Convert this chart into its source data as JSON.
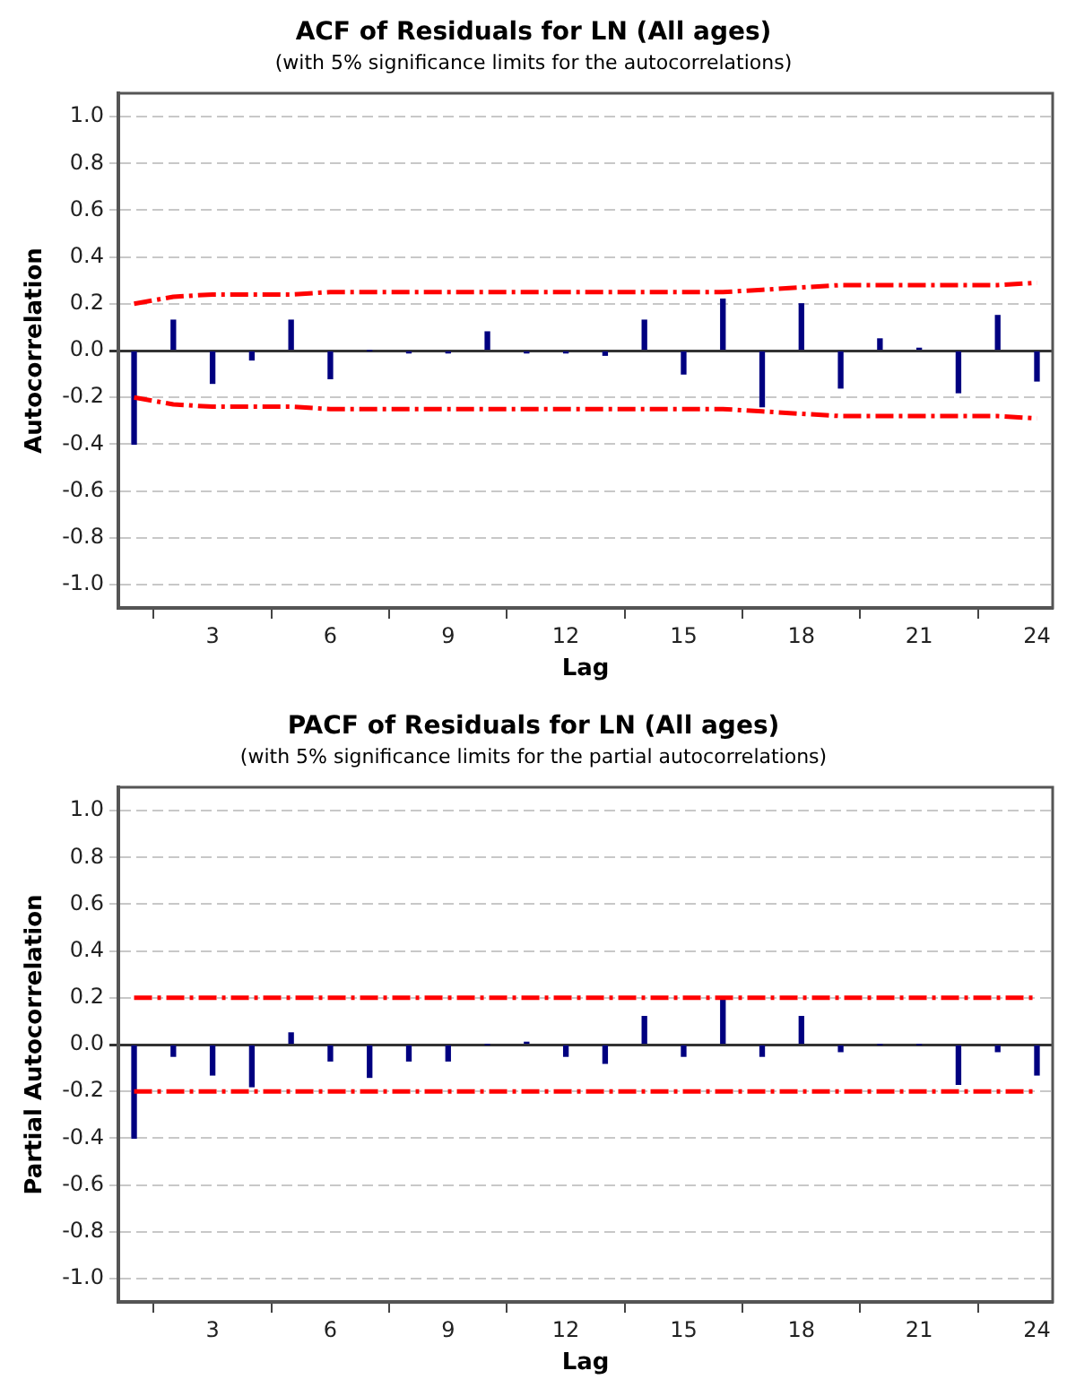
{
  "chart_data": [
    {
      "type": "bar",
      "title": "ACF of Residuals for LN (All ages)",
      "subtitle": "(with 5% significance limits for the autocorrelations)",
      "xlabel": "Lag",
      "ylabel": "Autocorrelation",
      "x": [
        1,
        2,
        3,
        4,
        5,
        6,
        7,
        8,
        9,
        10,
        11,
        12,
        13,
        14,
        15,
        16,
        17,
        18,
        19,
        20,
        21,
        22,
        23,
        24
      ],
      "series": [
        {
          "color": "#000080",
          "values": [
            -0.4,
            0.13,
            -0.14,
            -0.04,
            0.13,
            -0.12,
            0.0,
            -0.01,
            -0.01,
            0.08,
            -0.01,
            -0.01,
            -0.02,
            0.13,
            -0.1,
            0.22,
            -0.24,
            0.2,
            -0.16,
            0.05,
            0.01,
            -0.18,
            0.15,
            -0.13
          ]
        },
        {
          "type": "line",
          "color": "#ff0000",
          "line_style": "dashed",
          "marker": "none",
          "values": [
            0.2,
            0.23,
            0.24,
            0.24,
            0.24,
            0.25,
            0.25,
            0.25,
            0.25,
            0.25,
            0.25,
            0.25,
            0.25,
            0.25,
            0.25,
            0.25,
            0.26,
            0.27,
            0.28,
            0.28,
            0.28,
            0.28,
            0.28,
            0.29
          ]
        },
        {
          "type": "line",
          "color": "#ff0000",
          "line_style": "dashed",
          "marker": "none",
          "values": [
            -0.2,
            -0.23,
            -0.24,
            -0.24,
            -0.24,
            -0.25,
            -0.25,
            -0.25,
            -0.25,
            -0.25,
            -0.25,
            -0.25,
            -0.25,
            -0.25,
            -0.25,
            -0.25,
            -0.26,
            -0.27,
            -0.28,
            -0.28,
            -0.28,
            -0.28,
            -0.28,
            -0.29
          ]
        }
      ],
      "xlim": [
        0.6,
        24.4
      ],
      "xticks": [
        3,
        6,
        9,
        12,
        15,
        18,
        21,
        24
      ],
      "ylim": [
        -1.1,
        1.1
      ],
      "yticks": [
        {
          "value": 1,
          "label": "1.0"
        },
        {
          "value": 0.8,
          "label": "0.8"
        },
        {
          "value": 0.6,
          "label": "0.6"
        },
        {
          "value": 0.4,
          "label": "0.4"
        },
        {
          "value": 0.2,
          "label": "0.2"
        },
        {
          "value": 0,
          "label": "0.0"
        },
        {
          "value": -0.2,
          "label": "-0.2"
        },
        {
          "value": -0.4,
          "label": "-0.4"
        },
        {
          "value": -0.6,
          "label": "-0.6"
        },
        {
          "value": -0.8,
          "label": "-0.8"
        },
        {
          "value": -1,
          "label": "-1.0"
        }
      ],
      "grid": "y",
      "legend": false
    },
    {
      "type": "bar",
      "title": "PACF of Residuals for LN (All ages)",
      "subtitle": "(with 5% significance limits for the partial autocorrelations)",
      "xlabel": "Lag",
      "ylabel": "Partial Autocorrelation",
      "x": [
        1,
        2,
        3,
        4,
        5,
        6,
        7,
        8,
        9,
        10,
        11,
        12,
        13,
        14,
        15,
        16,
        17,
        18,
        19,
        20,
        21,
        22,
        23,
        24
      ],
      "series": [
        {
          "color": "#000080",
          "values": [
            -0.4,
            -0.05,
            -0.13,
            -0.18,
            0.05,
            -0.07,
            -0.14,
            -0.07,
            -0.07,
            0.0,
            0.01,
            -0.05,
            -0.08,
            0.12,
            -0.05,
            0.19,
            -0.05,
            0.12,
            -0.03,
            0.0,
            0.0,
            -0.17,
            -0.03,
            -0.13
          ]
        },
        {
          "type": "line",
          "color": "#ff0000",
          "line_style": "dashed",
          "marker": "none",
          "values": [
            0.2,
            0.2,
            0.2,
            0.2,
            0.2,
            0.2,
            0.2,
            0.2,
            0.2,
            0.2,
            0.2,
            0.2,
            0.2,
            0.2,
            0.2,
            0.2,
            0.2,
            0.2,
            0.2,
            0.2,
            0.2,
            0.2,
            0.2,
            0.2
          ]
        },
        {
          "type": "line",
          "color": "#ff0000",
          "line_style": "dashed",
          "marker": "none",
          "values": [
            -0.2,
            -0.2,
            -0.2,
            -0.2,
            -0.2,
            -0.2,
            -0.2,
            -0.2,
            -0.2,
            -0.2,
            -0.2,
            -0.2,
            -0.2,
            -0.2,
            -0.2,
            -0.2,
            -0.2,
            -0.2,
            -0.2,
            -0.2,
            -0.2,
            -0.2,
            -0.2,
            -0.2
          ]
        }
      ],
      "xlim": [
        0.6,
        24.4
      ],
      "xticks": [
        3,
        6,
        9,
        12,
        15,
        18,
        21,
        24
      ],
      "ylim": [
        -1.1,
        1.1
      ],
      "yticks": [
        {
          "value": 1,
          "label": "1.0"
        },
        {
          "value": 0.8,
          "label": "0.8"
        },
        {
          "value": 0.6,
          "label": "0.6"
        },
        {
          "value": 0.4,
          "label": "0.4"
        },
        {
          "value": 0.2,
          "label": "0.2"
        },
        {
          "value": 0,
          "label": "0.0"
        },
        {
          "value": -0.2,
          "label": "-0.2"
        },
        {
          "value": -0.4,
          "label": "-0.4"
        },
        {
          "value": -0.6,
          "label": "-0.6"
        },
        {
          "value": -0.8,
          "label": "-0.8"
        },
        {
          "value": -1,
          "label": "-1.0"
        }
      ],
      "grid": "y",
      "legend": false
    }
  ]
}
